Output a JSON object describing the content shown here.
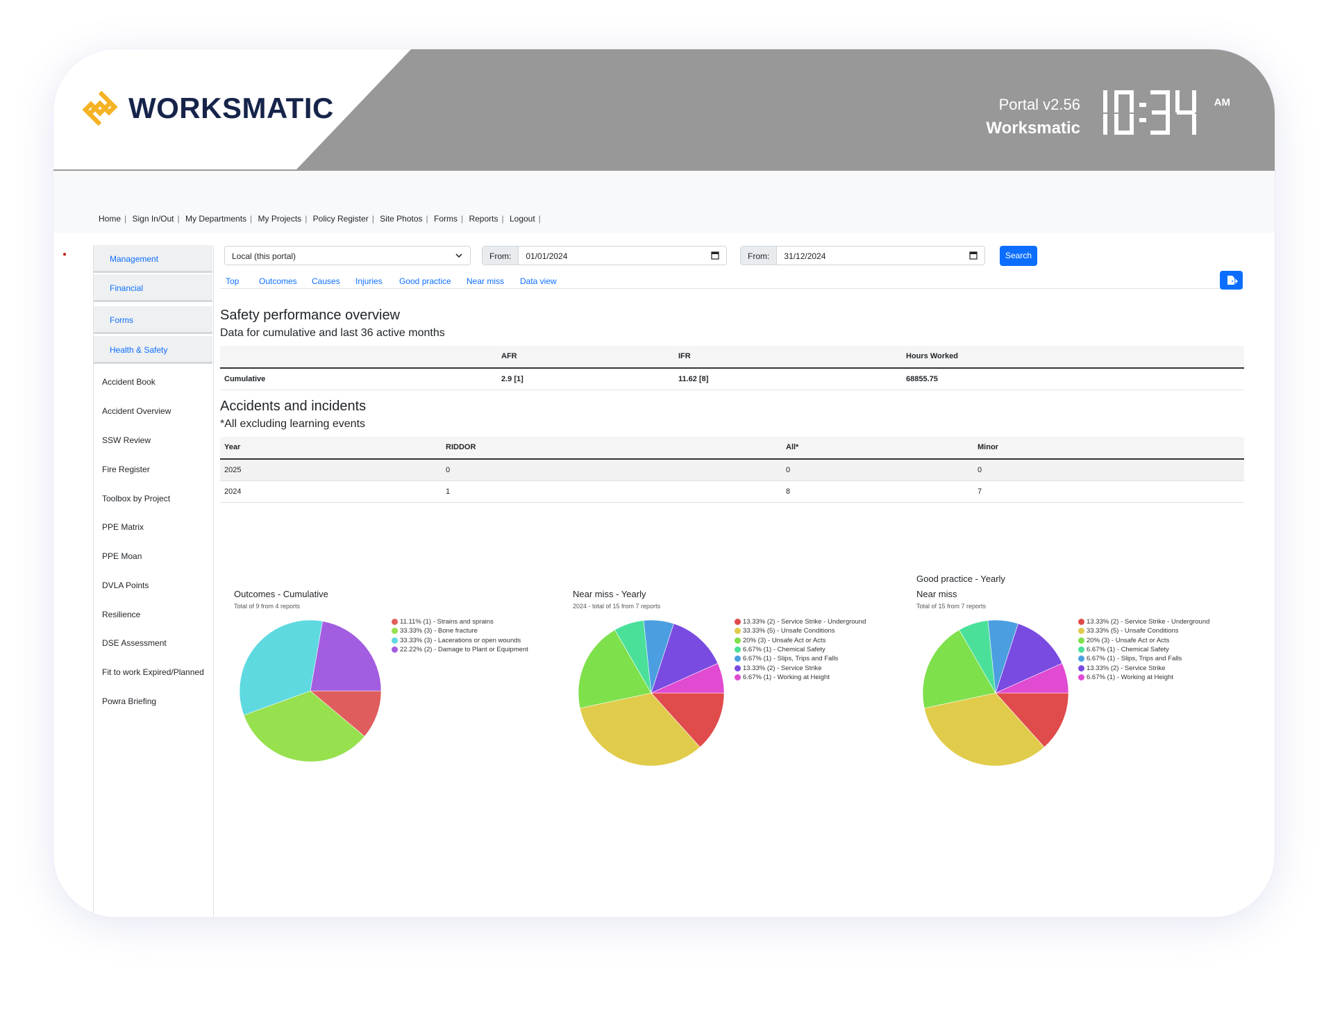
{
  "header": {
    "brand": "WORKSMATIC",
    "portal_version": "Portal v2.56",
    "portal_name": "Worksmatic",
    "clock": "10:34",
    "ampm": "AM",
    "brand_color": "#f5b324",
    "header_color": "#989898"
  },
  "top_nav": [
    "Home",
    "Sign In/Out",
    "My Departments",
    "My Projects",
    "Policy Register",
    "Site Photos",
    "Forms",
    "Reports",
    "Logout"
  ],
  "sidebar": {
    "sections": [
      "Management",
      "Financial",
      "Forms",
      "Health & Safety"
    ],
    "links": [
      "Accident Book",
      "Accident Overview",
      "SSW Review",
      "Fire Register",
      "Toolbox by Project",
      "PPE Matrix",
      "PPE Moan",
      "DVLA Points",
      "Resilience",
      "DSE Assessment",
      "Fit to work Expired/Planned",
      "Powra Briefing"
    ]
  },
  "filters": {
    "source_select": "Local (this portal)",
    "from_label": "From:",
    "from_value": "01/01/2024",
    "to_label": "From:",
    "to_value": "31/12/2024",
    "search_label": "Search"
  },
  "tabs": [
    "Top",
    "Outcomes",
    "Causes",
    "Injuries",
    "Good practice",
    "Near miss",
    "Data view"
  ],
  "safety": {
    "title": "Safety performance overview",
    "subtitle": "Data for cumulative and last 36 active months",
    "columns": [
      "AFR",
      "IFR",
      "Hours Worked"
    ],
    "row_label": "Cumulative",
    "values": [
      "2.9 [1]",
      "11.62 [8]",
      "68855.75"
    ]
  },
  "accidents": {
    "title": "Accidents and incidents",
    "subtitle": "*All excluding learning events",
    "columns": [
      "Year",
      "RIDDOR",
      "All*",
      "Minor"
    ],
    "rows": [
      [
        "2025",
        "0",
        "0",
        "0"
      ],
      [
        "2024",
        "1",
        "8",
        "7"
      ]
    ]
  },
  "chart_data": [
    {
      "type": "pie",
      "title": "Outcomes - Cumulative",
      "subtitle": "Total of 9 from 4 reports",
      "labels": [
        "11.11% (1) - Strains and sprains",
        "33.33% (3) - Bone fracture",
        "33.33% (3) - Lacerations or open wounds",
        "22.22% (2) - Damage to Plant or Equipment"
      ],
      "values": [
        1,
        3,
        3,
        2
      ],
      "colors": [
        "#e05d5d",
        "#97e04e",
        "#5ed9e0",
        "#a35de0"
      ]
    },
    {
      "type": "pie",
      "title": "Near miss - Yearly",
      "subtitle": "2024 - total of 15 from 7 reports",
      "labels": [
        "13.33% (2) - Service Strike - Underground",
        "33.33% (5) - Unsafe Conditions",
        "20% (3) - Unsafe Act or Acts",
        "6.67% (1) - Chemical Safety",
        "6.67% (1) - Slips, Trips and Falls",
        "13.33% (2) - Service Strike",
        "6.67% (1) - Working at Height"
      ],
      "values": [
        2,
        5,
        3,
        1,
        1,
        2,
        1
      ],
      "colors": [
        "#e04b4b",
        "#e0cb4b",
        "#7ee04b",
        "#4be09a",
        "#4b9fe0",
        "#7a4be0",
        "#e04bd2"
      ]
    },
    {
      "type": "pie",
      "title": "Good practice - Yearly",
      "title2": "Near miss",
      "subtitle": "Total of 15 from 7 reports",
      "labels": [
        "13.33% (2) - Service Strike - Underground",
        "33.33% (5) - Unsafe Conditions",
        "20% (3) - Unsafe Act or Acts",
        "6.67% (1) - Chemical Safety",
        "6.67% (1) - Slips, Trips and Falls",
        "13.33% (2) - Service Strike",
        "6.67% (1) - Working at Height"
      ],
      "values": [
        2,
        5,
        3,
        1,
        1,
        2,
        1
      ],
      "colors": [
        "#e04b4b",
        "#e0cb4b",
        "#7ee04b",
        "#4be09a",
        "#4b9fe0",
        "#7a4be0",
        "#e04bd2"
      ]
    }
  ]
}
